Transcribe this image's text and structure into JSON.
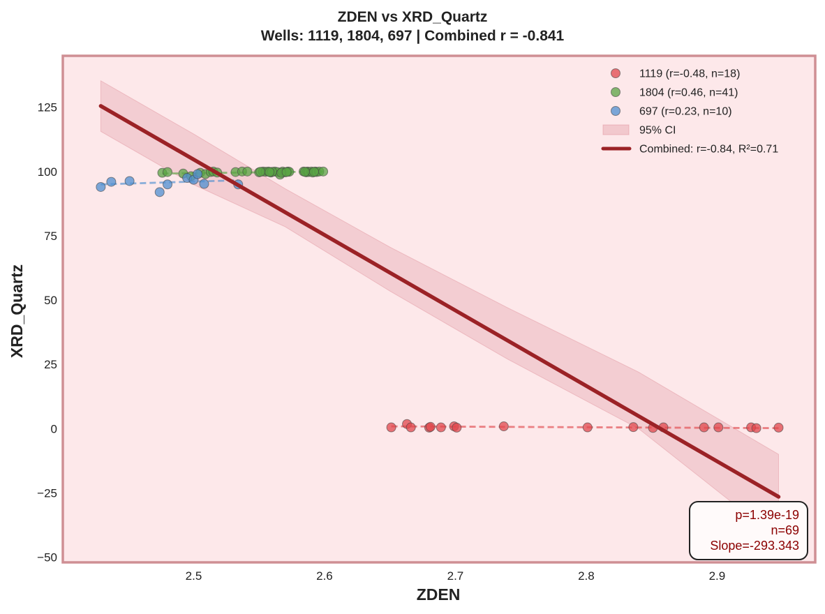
{
  "chart_data": {
    "type": "scatter",
    "title": "ZDEN vs XRD_Quartz",
    "subtitle": "Wells: 1119, 1804, 697 | Combined r = -0.841",
    "xlabel": "ZDEN",
    "ylabel": "XRD_Quartz",
    "xlim": [
      2.4,
      2.975
    ],
    "ylim": [
      -52,
      145
    ],
    "xticks": [
      2.5,
      2.6,
      2.7,
      2.8,
      2.9
    ],
    "xtick_labels": [
      "2.5",
      "2.6",
      "2.7",
      "2.8",
      "2.9"
    ],
    "yticks": [
      -50,
      -25,
      0,
      25,
      50,
      75,
      100,
      125
    ],
    "ytick_labels": [
      "−50",
      "−25",
      "0",
      "25",
      "50",
      "75",
      "100",
      "125"
    ],
    "grid": false,
    "legend_position": "top-right",
    "background": "#fde8ea",
    "series": [
      {
        "name": "1119 (r=-0.48, n=18)",
        "color": "#e0474c",
        "points": [
          {
            "x": 2.651,
            "y": 0.5
          },
          {
            "x": 2.663,
            "y": 1.8
          },
          {
            "x": 2.666,
            "y": 0.5
          },
          {
            "x": 2.68,
            "y": 0.4
          },
          {
            "x": 2.681,
            "y": 0.7
          },
          {
            "x": 2.689,
            "y": 0.5
          },
          {
            "x": 2.699,
            "y": 0.9
          },
          {
            "x": 2.701,
            "y": 0.4
          },
          {
            "x": 2.737,
            "y": 0.9
          },
          {
            "x": 2.801,
            "y": 0.5
          },
          {
            "x": 2.836,
            "y": 0.6
          },
          {
            "x": 2.851,
            "y": 0.3
          },
          {
            "x": 2.859,
            "y": 0.5
          },
          {
            "x": 2.89,
            "y": 0.5
          },
          {
            "x": 2.901,
            "y": 0.5
          },
          {
            "x": 2.926,
            "y": 0.5
          },
          {
            "x": 2.93,
            "y": 0.2
          },
          {
            "x": 2.947,
            "y": 0.4
          }
        ],
        "trend": {
          "x": [
            2.651,
            2.947
          ],
          "y": [
            0.9,
            0.2
          ]
        }
      },
      {
        "name": "1804 (r=0.46, n=41)",
        "color": "#5aa444",
        "points": [
          {
            "x": 2.476,
            "y": 99.5
          },
          {
            "x": 2.48,
            "y": 99.8
          },
          {
            "x": 2.492,
            "y": 99.2
          },
          {
            "x": 2.505,
            "y": 99.5
          },
          {
            "x": 2.509,
            "y": 99.0
          },
          {
            "x": 2.513,
            "y": 99.8
          },
          {
            "x": 2.515,
            "y": 100.0
          },
          {
            "x": 2.532,
            "y": 99.8
          },
          {
            "x": 2.537,
            "y": 100.0
          },
          {
            "x": 2.541,
            "y": 100.0
          },
          {
            "x": 2.55,
            "y": 99.7
          },
          {
            "x": 2.553,
            "y": 100.0
          },
          {
            "x": 2.555,
            "y": 99.9
          },
          {
            "x": 2.557,
            "y": 100.0
          },
          {
            "x": 2.559,
            "y": 99.6
          },
          {
            "x": 2.562,
            "y": 100.0
          },
          {
            "x": 2.564,
            "y": 99.8
          },
          {
            "x": 2.566,
            "y": 98.8
          },
          {
            "x": 2.568,
            "y": 100.0
          },
          {
            "x": 2.57,
            "y": 99.7
          },
          {
            "x": 2.572,
            "y": 100.0
          },
          {
            "x": 2.573,
            "y": 99.9
          },
          {
            "x": 2.584,
            "y": 100.0
          },
          {
            "x": 2.586,
            "y": 99.7
          },
          {
            "x": 2.587,
            "y": 100.0
          },
          {
            "x": 2.588,
            "y": 99.8
          },
          {
            "x": 2.59,
            "y": 100.0
          },
          {
            "x": 2.591,
            "y": 99.6
          },
          {
            "x": 2.593,
            "y": 100.0
          },
          {
            "x": 2.594,
            "y": 99.8
          },
          {
            "x": 2.596,
            "y": 100.0
          },
          {
            "x": 2.599,
            "y": 100.0
          },
          {
            "x": 2.56,
            "y": 99.9
          },
          {
            "x": 2.567,
            "y": 99.5
          },
          {
            "x": 2.571,
            "y": 99.8
          },
          {
            "x": 2.551,
            "y": 99.9
          },
          {
            "x": 2.592,
            "y": 99.9
          },
          {
            "x": 2.585,
            "y": 99.9
          },
          {
            "x": 2.558,
            "y": 99.8
          },
          {
            "x": 2.498,
            "y": 98.2
          },
          {
            "x": 2.518,
            "y": 99.6
          }
        ],
        "trend": {
          "x": [
            2.476,
            2.599
          ],
          "y": [
            99.2,
            100.0
          ]
        }
      },
      {
        "name": "697 (r=0.23, n=10)",
        "color": "#4f8fd0",
        "points": [
          {
            "x": 2.429,
            "y": 94.0
          },
          {
            "x": 2.437,
            "y": 96.0
          },
          {
            "x": 2.451,
            "y": 96.3
          },
          {
            "x": 2.474,
            "y": 92.0
          },
          {
            "x": 2.48,
            "y": 95.0
          },
          {
            "x": 2.495,
            "y": 97.5
          },
          {
            "x": 2.5,
            "y": 96.8
          },
          {
            "x": 2.503,
            "y": 99.0
          },
          {
            "x": 2.508,
            "y": 95.2
          },
          {
            "x": 2.534,
            "y": 95.0
          }
        ],
        "trend": {
          "x": [
            2.429,
            2.534
          ],
          "y": [
            95.0,
            96.6
          ]
        }
      }
    ],
    "ci_label": "95% CI",
    "combined": {
      "name": "Combined: r=-0.84, R²=0.71",
      "color": "#9b2226",
      "line": {
        "x": [
          2.429,
          2.947
        ],
        "y": [
          125.5,
          -26.5
        ]
      },
      "ci_upper": [
        135.3,
        114.6,
        93.3,
        70.6,
        47.0,
        22.0,
        -10.0
      ],
      "ci_lower": [
        115.6,
        94.9,
        78.5,
        53.5,
        27.0,
        0.0,
        -43.0
      ],
      "ci_x": [
        2.429,
        2.5,
        2.57,
        2.65,
        2.74,
        2.84,
        2.947
      ]
    },
    "stats": {
      "p": "p=1.39e-19",
      "n": "n=69",
      "slope": "Slope=-293.343"
    }
  }
}
